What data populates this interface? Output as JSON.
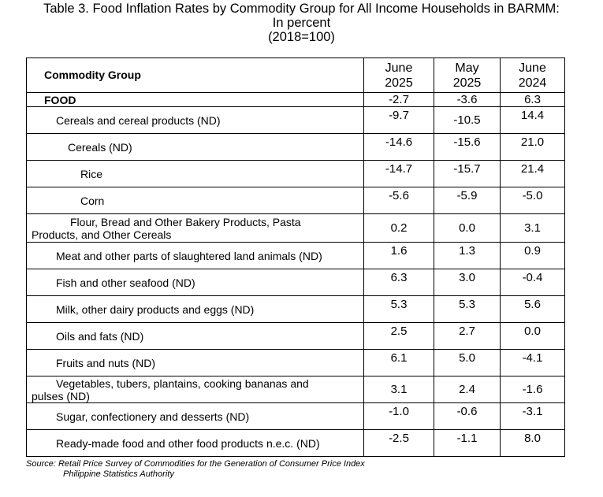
{
  "title": {
    "line1": "Table 3. Food Inflation Rates by Commodity Group for All Income Households in BARMM:",
    "line2": "In percent",
    "line3": "(2018=100)"
  },
  "columns": {
    "group": "Commodity Group",
    "c1": {
      "month": "June",
      "year": "2025"
    },
    "c2": {
      "month": "May",
      "year": "2025"
    },
    "c3": {
      "month": "June",
      "year": "2024"
    }
  },
  "rows": [
    {
      "label": "FOOD",
      "v1": "-2.7",
      "v2": "-3.6",
      "v3": "6.3"
    },
    {
      "label": "Cereals and cereal products (ND)",
      "v1": "-9.7",
      "v2": "-10.5",
      "v3": "14.4"
    },
    {
      "label": "Cereals (ND)",
      "v1": "-14.6",
      "v2": "-15.6",
      "v3": "21.0"
    },
    {
      "label": "Rice",
      "v1": "-14.7",
      "v2": "-15.7",
      "v3": "21.4"
    },
    {
      "label": "Corn",
      "v1": "-5.6",
      "v2": "-5.9",
      "v3": "-5.0"
    },
    {
      "label_a": "Flour, Bread and Other Bakery Products, Pasta",
      "label_b": "Products, and Other Cereals",
      "v1": "0.2",
      "v2": "0.0",
      "v3": "3.1"
    },
    {
      "label": "Meat and other parts of slaughtered land animals (ND)",
      "v1": "1.6",
      "v2": "1.3",
      "v3": "0.9"
    },
    {
      "label": "Fish and other seafood (ND)",
      "v1": "6.3",
      "v2": "3.0",
      "v3": "-0.4"
    },
    {
      "label": "Milk, other dairy products and eggs (ND)",
      "v1": "5.3",
      "v2": "5.3",
      "v3": "5.6"
    },
    {
      "label": "Oils and fats (ND)",
      "v1": "2.5",
      "v2": "2.7",
      "v3": "0.0"
    },
    {
      "label": "Fruits and nuts (ND)",
      "v1": "6.1",
      "v2": "5.0",
      "v3": "-4.1"
    },
    {
      "label_a": "Vegetables, tubers, plantains, cooking bananas and",
      "label_b": "pulses (ND)",
      "v1": "3.1",
      "v2": "2.4",
      "v3": "-1.6"
    },
    {
      "label": "Sugar, confectionery and desserts (ND)",
      "v1": "-1.0",
      "v2": "-0.6",
      "v3": "-3.1"
    },
    {
      "label": "Ready-made food and other food products n.e.c. (ND)",
      "v1": "-2.5",
      "v2": "-1.1",
      "v3": "8.0"
    }
  ],
  "source": {
    "line1": "Source: Retail Price Survey of Commodities for the Generation of Consumer Price Index",
    "line2": "Philippine Statistics Authority"
  }
}
